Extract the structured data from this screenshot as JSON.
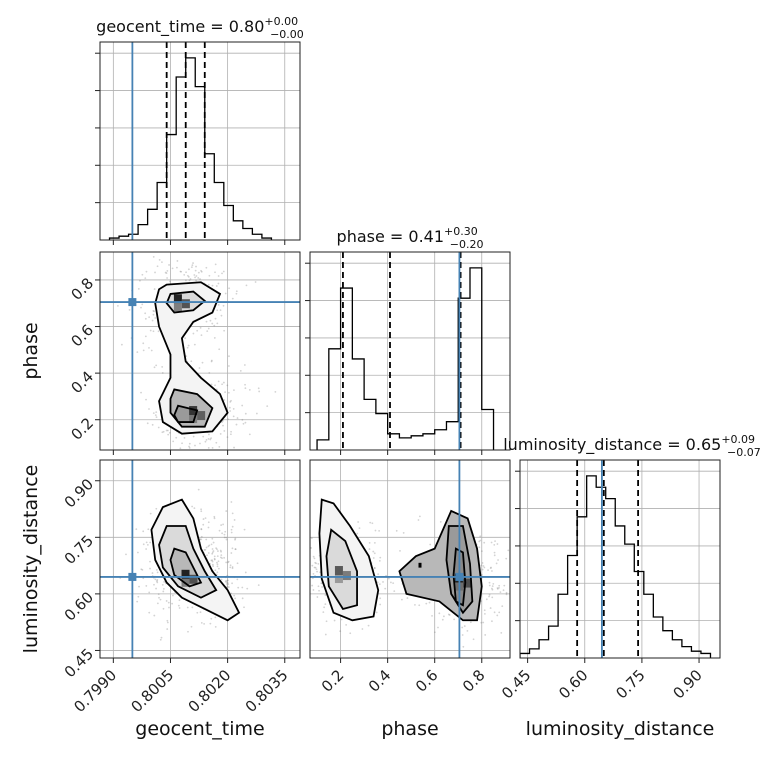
{
  "chart_data": {
    "type": "corner",
    "parameters": [
      "geocent_time",
      "phase",
      "luminosity_distance"
    ],
    "truths": {
      "geocent_time": 0.7995,
      "phase": 0.705,
      "luminosity_distance": 0.645
    },
    "colors": {
      "truth": "#4682b4",
      "hist": "#000000",
      "scatter": "#808080"
    },
    "grid": true,
    "titles": {
      "geocent_time": {
        "name": "geocent_time",
        "median": "0.80",
        "plus": "+0.00",
        "minus": "−0.00"
      },
      "phase": {
        "name": "phase",
        "median": "0.41",
        "plus": "+0.30",
        "minus": "−0.20"
      },
      "luminosity_distance": {
        "name": "luminosity_distance",
        "median": "0.65",
        "plus": "+0.09",
        "minus": "−0.07"
      }
    },
    "ranges": {
      "geocent_time": [
        0.79865,
        0.8039
      ],
      "phase": [
        0.07,
        0.92
      ],
      "luminosity_distance": [
        0.43,
        0.955
      ]
    },
    "ticks": {
      "geocent_time": [
        "0.7990",
        "0.8005",
        "0.8020",
        "0.8035"
      ],
      "phase": [
        "0.2",
        "0.4",
        "0.6",
        "0.8"
      ],
      "luminosity_distance": [
        "0.45",
        "0.60",
        "0.75",
        "0.90"
      ]
    },
    "axis_labels": {
      "geocent_time": "geocent_time",
      "phase": "phase",
      "luminosity_distance": "luminosity_distance"
    },
    "quantiles": {
      "geocent_time": [
        0.8004,
        0.8009,
        0.8014
      ],
      "phase": [
        0.21,
        0.41,
        0.71
      ],
      "luminosity_distance": [
        0.58,
        0.65,
        0.74
      ]
    },
    "histograms": {
      "geocent_time": {
        "bins": [
          0.7989,
          0.79915,
          0.7994,
          0.79965,
          0.7999,
          0.80015,
          0.8004,
          0.80065,
          0.8009,
          0.80115,
          0.8014,
          0.80165,
          0.8019,
          0.80215,
          0.8024,
          0.80265,
          0.8029,
          0.80315
        ],
        "counts": [
          1,
          2,
          3,
          8,
          16,
          30,
          55,
          85,
          95,
          80,
          45,
          30,
          18,
          10,
          6,
          3,
          1
        ]
      },
      "phase": {
        "bins": [
          0.1,
          0.15,
          0.2,
          0.25,
          0.3,
          0.35,
          0.4,
          0.45,
          0.5,
          0.55,
          0.6,
          0.65,
          0.7,
          0.75,
          0.8,
          0.85
        ],
        "counts": [
          5,
          50,
          80,
          45,
          25,
          18,
          8,
          6,
          7,
          8,
          10,
          14,
          75,
          90,
          20
        ]
      },
      "luminosity_distance": {
        "bins": [
          0.43,
          0.455,
          0.48,
          0.505,
          0.53,
          0.555,
          0.58,
          0.605,
          0.63,
          0.655,
          0.68,
          0.705,
          0.73,
          0.755,
          0.78,
          0.805,
          0.83,
          0.855,
          0.88,
          0.905,
          0.93
        ],
        "counts": [
          2,
          4,
          8,
          14,
          28,
          45,
          62,
          80,
          75,
          70,
          58,
          50,
          38,
          28,
          18,
          12,
          8,
          5,
          3,
          2
        ]
      }
    },
    "contours_2d": [
      {
        "x": "geocent_time",
        "y": "phase",
        "levels": [
          [
            [
              0.8004,
              0.78
            ],
            [
              0.8013,
              0.79
            ],
            [
              0.8018,
              0.74
            ],
            [
              0.8016,
              0.66
            ],
            [
              0.8011,
              0.62
            ],
            [
              0.8008,
              0.55
            ],
            [
              0.8009,
              0.45
            ],
            [
              0.8013,
              0.38
            ],
            [
              0.8018,
              0.31
            ],
            [
              0.802,
              0.23
            ],
            [
              0.8016,
              0.15
            ],
            [
              0.8008,
              0.14
            ],
            [
              0.8003,
              0.19
            ],
            [
              0.8002,
              0.28
            ],
            [
              0.8005,
              0.38
            ],
            [
              0.8005,
              0.48
            ],
            [
              0.8002,
              0.6
            ],
            [
              0.8001,
              0.7
            ],
            [
              0.8002,
              0.76
            ]
          ],
          [
            [
              0.8005,
              0.74
            ],
            [
              0.8011,
              0.75
            ],
            [
              0.8014,
              0.71
            ],
            [
              0.8011,
              0.67
            ],
            [
              0.8006,
              0.66
            ],
            [
              0.8004,
              0.7
            ]
          ],
          [
            [
              0.8006,
              0.33
            ],
            [
              0.8012,
              0.31
            ],
            [
              0.8016,
              0.25
            ],
            [
              0.8014,
              0.17
            ],
            [
              0.8008,
              0.17
            ],
            [
              0.8005,
              0.23
            ],
            [
              0.8005,
              0.29
            ]
          ],
          [
            [
              0.8007,
              0.26
            ],
            [
              0.8012,
              0.24
            ],
            [
              0.8011,
              0.19
            ],
            [
              0.8007,
              0.19
            ],
            [
              0.8006,
              0.22
            ]
          ]
        ]
      },
      {
        "x": "geocent_time",
        "y": "luminosity_distance",
        "levels": [
          [
            [
              0.8003,
              0.83
            ],
            [
              0.8008,
              0.85
            ],
            [
              0.8011,
              0.8
            ],
            [
              0.8013,
              0.72
            ],
            [
              0.8016,
              0.66
            ],
            [
              0.802,
              0.61
            ],
            [
              0.8023,
              0.55
            ],
            [
              0.802,
              0.53
            ],
            [
              0.8014,
              0.56
            ],
            [
              0.8008,
              0.59
            ],
            [
              0.8004,
              0.63
            ],
            [
              0.8001,
              0.69
            ],
            [
              0.8,
              0.77
            ]
          ],
          [
            [
              0.8004,
              0.78
            ],
            [
              0.8009,
              0.78
            ],
            [
              0.8011,
              0.72
            ],
            [
              0.8014,
              0.66
            ],
            [
              0.8017,
              0.61
            ],
            [
              0.8013,
              0.59
            ],
            [
              0.8007,
              0.62
            ],
            [
              0.8003,
              0.67
            ],
            [
              0.8002,
              0.73
            ]
          ],
          [
            [
              0.8006,
              0.72
            ],
            [
              0.8009,
              0.71
            ],
            [
              0.8011,
              0.67
            ],
            [
              0.8013,
              0.63
            ],
            [
              0.801,
              0.62
            ],
            [
              0.8006,
              0.65
            ],
            [
              0.8005,
              0.69
            ]
          ]
        ]
      },
      {
        "x": "phase",
        "y": "luminosity_distance",
        "levels": [
          [
            [
              0.12,
              0.85
            ],
            [
              0.17,
              0.84
            ],
            [
              0.24,
              0.78
            ],
            [
              0.32,
              0.7
            ],
            [
              0.36,
              0.61
            ],
            [
              0.34,
              0.54
            ],
            [
              0.25,
              0.53
            ],
            [
              0.17,
              0.55
            ],
            [
              0.12,
              0.64
            ],
            [
              0.11,
              0.76
            ]
          ],
          [
            [
              0.16,
              0.77
            ],
            [
              0.22,
              0.74
            ],
            [
              0.27,
              0.66
            ],
            [
              0.27,
              0.57
            ],
            [
              0.21,
              0.56
            ],
            [
              0.15,
              0.62
            ],
            [
              0.14,
              0.7
            ]
          ],
          [
            [
              0.6,
              0.72
            ],
            [
              0.67,
              0.82
            ],
            [
              0.74,
              0.8
            ],
            [
              0.78,
              0.72
            ],
            [
              0.8,
              0.62
            ],
            [
              0.78,
              0.53
            ],
            [
              0.72,
              0.53
            ],
            [
              0.62,
              0.58
            ],
            [
              0.48,
              0.6
            ],
            [
              0.45,
              0.66
            ],
            [
              0.52,
              0.7
            ]
          ],
          [
            [
              0.66,
              0.78
            ],
            [
              0.72,
              0.78
            ],
            [
              0.75,
              0.68
            ],
            [
              0.76,
              0.58
            ],
            [
              0.72,
              0.55
            ],
            [
              0.67,
              0.6
            ],
            [
              0.65,
              0.69
            ]
          ],
          [
            [
              0.69,
              0.72
            ],
            [
              0.72,
              0.71
            ],
            [
              0.73,
              0.63
            ],
            [
              0.72,
              0.57
            ],
            [
              0.69,
              0.58
            ],
            [
              0.68,
              0.65
            ]
          ],
          [
            [
              0.535,
              0.68
            ],
            [
              0.54,
              0.68
            ],
            [
              0.54,
              0.672
            ],
            [
              0.535,
              0.672
            ]
          ]
        ]
      }
    ],
    "density_2d": [
      {
        "x": "geocent_time",
        "y": "phase",
        "cores": [
          [
            0.8008,
            0.7,
            1.0
          ],
          [
            0.8012,
            0.22,
            0.85
          ]
        ]
      },
      {
        "x": "geocent_time",
        "y": "luminosity_distance",
        "cores": [
          [
            0.801,
            0.64,
            1.0
          ]
        ]
      },
      {
        "x": "phase",
        "y": "luminosity_distance",
        "cores": [
          [
            0.21,
            0.65,
            0.7
          ],
          [
            0.72,
            0.63,
            1.0
          ]
        ]
      }
    ]
  }
}
